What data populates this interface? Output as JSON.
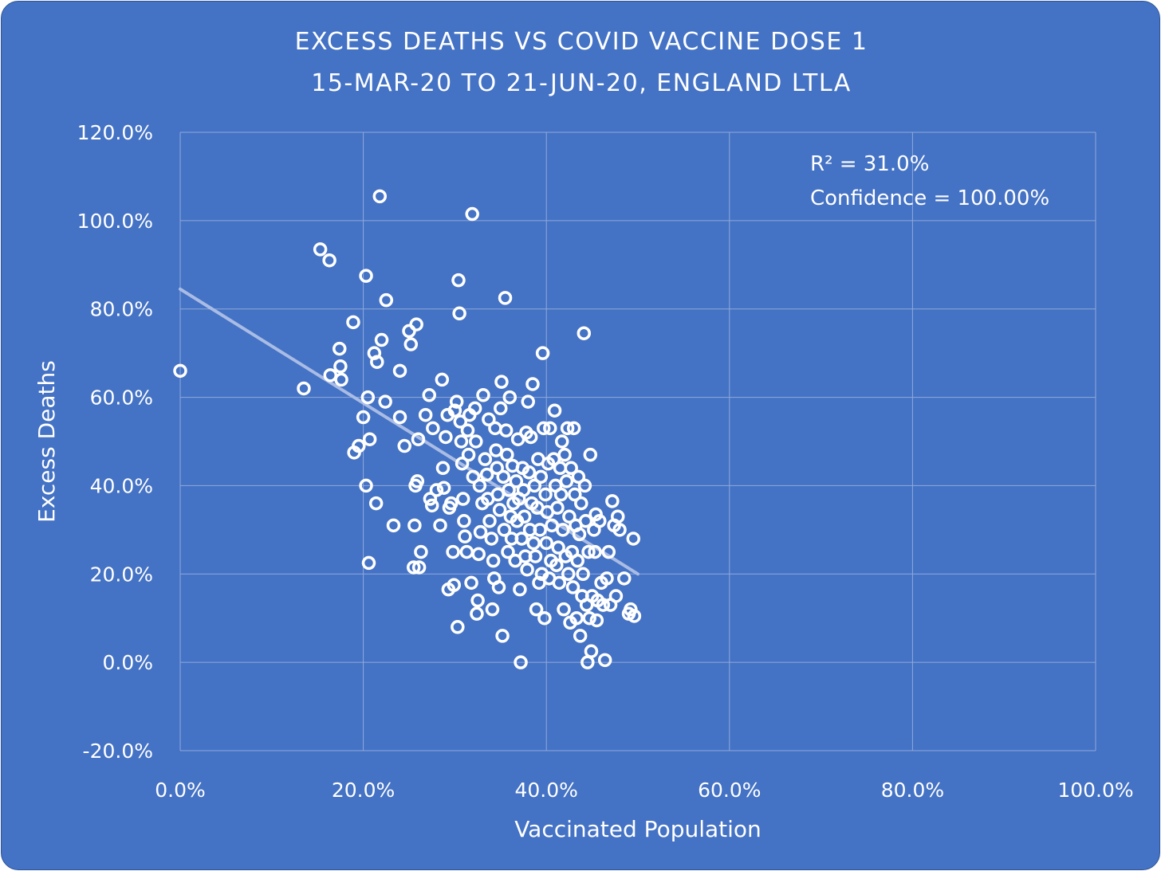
{
  "chart_data": {
    "type": "scatter",
    "title_lines": [
      "EXCESS DEATHS VS COVID VACCINE DOSE 1",
      "15-MAR-20 TO 21-JUN-20, ENGLAND LTLA"
    ],
    "xlabel": "Vaccinated Population",
    "ylabel": "Excess Deaths",
    "xlim": [
      0,
      1.0
    ],
    "ylim": [
      -0.2,
      1.2
    ],
    "x_ticks": [
      "0.0%",
      "20.0%",
      "40.0%",
      "60.0%",
      "80.0%",
      "100.0%"
    ],
    "y_ticks": [
      "120.0%",
      "100.0%",
      "80.0%",
      "60.0%",
      "40.0%",
      "20.0%",
      "0.0%",
      "-20.0%"
    ],
    "grid": true,
    "annotations": [
      "R² = 31.0%",
      "Confidence = 100.00%"
    ],
    "trendline": {
      "x": [
        0.0,
        0.5
      ],
      "y": [
        0.845,
        0.2
      ]
    },
    "colors": {
      "background": "#4472c4",
      "marker": "#ffffff",
      "trendline": "#a9bce5",
      "grid": "#8faadc"
    },
    "points": [
      [
        0.0,
        0.66
      ],
      [
        0.135,
        0.62
      ],
      [
        0.153,
        0.935
      ],
      [
        0.163,
        0.91
      ],
      [
        0.164,
        0.65
      ],
      [
        0.174,
        0.71
      ],
      [
        0.175,
        0.67
      ],
      [
        0.176,
        0.64
      ],
      [
        0.189,
        0.77
      ],
      [
        0.19,
        0.475
      ],
      [
        0.195,
        0.49
      ],
      [
        0.2,
        0.555
      ],
      [
        0.203,
        0.875
      ],
      [
        0.203,
        0.4
      ],
      [
        0.205,
        0.6
      ],
      [
        0.206,
        0.225
      ],
      [
        0.207,
        0.505
      ],
      [
        0.212,
        0.7
      ],
      [
        0.214,
        0.36
      ],
      [
        0.215,
        0.68
      ],
      [
        0.218,
        1.055
      ],
      [
        0.22,
        0.73
      ],
      [
        0.224,
        0.59
      ],
      [
        0.225,
        0.82
      ],
      [
        0.233,
        0.31
      ],
      [
        0.24,
        0.66
      ],
      [
        0.24,
        0.555
      ],
      [
        0.245,
        0.49
      ],
      [
        0.25,
        0.75
      ],
      [
        0.252,
        0.72
      ],
      [
        0.255,
        0.215
      ],
      [
        0.256,
        0.31
      ],
      [
        0.257,
        0.4
      ],
      [
        0.258,
        0.765
      ],
      [
        0.259,
        0.41
      ],
      [
        0.26,
        0.505
      ],
      [
        0.261,
        0.215
      ],
      [
        0.263,
        0.25
      ],
      [
        0.268,
        0.56
      ],
      [
        0.272,
        0.605
      ],
      [
        0.273,
        0.37
      ],
      [
        0.275,
        0.355
      ],
      [
        0.276,
        0.53
      ],
      [
        0.28,
        0.39
      ],
      [
        0.284,
        0.31
      ],
      [
        0.286,
        0.64
      ],
      [
        0.287,
        0.44
      ],
      [
        0.288,
        0.395
      ],
      [
        0.29,
        0.51
      ],
      [
        0.292,
        0.56
      ],
      [
        0.293,
        0.165
      ],
      [
        0.294,
        0.35
      ],
      [
        0.296,
        0.36
      ],
      [
        0.298,
        0.25
      ],
      [
        0.299,
        0.175
      ],
      [
        0.3,
        0.57
      ],
      [
        0.302,
        0.59
      ],
      [
        0.303,
        0.08
      ],
      [
        0.304,
        0.865
      ],
      [
        0.305,
        0.79
      ],
      [
        0.306,
        0.545
      ],
      [
        0.307,
        0.5
      ],
      [
        0.308,
        0.45
      ],
      [
        0.309,
        0.37
      ],
      [
        0.31,
        0.32
      ],
      [
        0.311,
        0.285
      ],
      [
        0.313,
        0.25
      ],
      [
        0.314,
        0.525
      ],
      [
        0.315,
        0.47
      ],
      [
        0.316,
        0.56
      ],
      [
        0.318,
        0.18
      ],
      [
        0.319,
        1.015
      ],
      [
        0.32,
        0.42
      ],
      [
        0.322,
        0.575
      ],
      [
        0.323,
        0.5
      ],
      [
        0.324,
        0.11
      ],
      [
        0.325,
        0.14
      ],
      [
        0.326,
        0.245
      ],
      [
        0.327,
        0.4
      ],
      [
        0.328,
        0.295
      ],
      [
        0.33,
        0.36
      ],
      [
        0.331,
        0.605
      ],
      [
        0.333,
        0.46
      ],
      [
        0.335,
        0.425
      ],
      [
        0.336,
        0.37
      ],
      [
        0.337,
        0.55
      ],
      [
        0.338,
        0.32
      ],
      [
        0.34,
        0.28
      ],
      [
        0.341,
        0.12
      ],
      [
        0.342,
        0.23
      ],
      [
        0.343,
        0.19
      ],
      [
        0.344,
        0.53
      ],
      [
        0.345,
        0.48
      ],
      [
        0.346,
        0.44
      ],
      [
        0.347,
        0.38
      ],
      [
        0.348,
        0.17
      ],
      [
        0.349,
        0.345
      ],
      [
        0.35,
        0.575
      ],
      [
        0.351,
        0.635
      ],
      [
        0.352,
        0.06
      ],
      [
        0.353,
        0.42
      ],
      [
        0.354,
        0.3
      ],
      [
        0.355,
        0.825
      ],
      [
        0.356,
        0.525
      ],
      [
        0.357,
        0.47
      ],
      [
        0.358,
        0.25
      ],
      [
        0.359,
        0.39
      ],
      [
        0.36,
        0.6
      ],
      [
        0.361,
        0.33
      ],
      [
        0.362,
        0.28
      ],
      [
        0.363,
        0.445
      ],
      [
        0.364,
        0.36
      ],
      [
        0.366,
        0.23
      ],
      [
        0.367,
        0.41
      ],
      [
        0.368,
        0.32
      ],
      [
        0.369,
        0.505
      ],
      [
        0.37,
        0.37
      ],
      [
        0.371,
        0.165
      ],
      [
        0.372,
        0.0
      ],
      [
        0.373,
        0.28
      ],
      [
        0.374,
        0.44
      ],
      [
        0.375,
        0.39
      ],
      [
        0.376,
        0.33
      ],
      [
        0.377,
        0.24
      ],
      [
        0.378,
        0.52
      ],
      [
        0.379,
        0.21
      ],
      [
        0.38,
        0.59
      ],
      [
        0.381,
        0.43
      ],
      [
        0.382,
        0.3
      ],
      [
        0.383,
        0.51
      ],
      [
        0.384,
        0.36
      ],
      [
        0.385,
        0.63
      ],
      [
        0.386,
        0.27
      ],
      [
        0.387,
        0.4
      ],
      [
        0.388,
        0.24
      ],
      [
        0.389,
        0.12
      ],
      [
        0.39,
        0.35
      ],
      [
        0.391,
        0.46
      ],
      [
        0.392,
        0.18
      ],
      [
        0.393,
        0.3
      ],
      [
        0.394,
        0.42
      ],
      [
        0.395,
        0.2
      ],
      [
        0.396,
        0.7
      ],
      [
        0.397,
        0.53
      ],
      [
        0.398,
        0.1
      ],
      [
        0.399,
        0.38
      ],
      [
        0.4,
        0.27
      ],
      [
        0.401,
        0.34
      ],
      [
        0.402,
        0.45
      ],
      [
        0.403,
        0.19
      ],
      [
        0.404,
        0.53
      ],
      [
        0.405,
        0.23
      ],
      [
        0.406,
        0.31
      ],
      [
        0.408,
        0.46
      ],
      [
        0.409,
        0.57
      ],
      [
        0.41,
        0.4
      ],
      [
        0.411,
        0.22
      ],
      [
        0.412,
        0.35
      ],
      [
        0.413,
        0.26
      ],
      [
        0.414,
        0.18
      ],
      [
        0.415,
        0.44
      ],
      [
        0.416,
        0.38
      ],
      [
        0.417,
        0.5
      ],
      [
        0.418,
        0.3
      ],
      [
        0.419,
        0.12
      ],
      [
        0.42,
        0.47
      ],
      [
        0.421,
        0.24
      ],
      [
        0.422,
        0.41
      ],
      [
        0.423,
        0.53
      ],
      [
        0.424,
        0.2
      ],
      [
        0.425,
        0.33
      ],
      [
        0.426,
        0.09
      ],
      [
        0.427,
        0.44
      ],
      [
        0.428,
        0.25
      ],
      [
        0.429,
        0.17
      ],
      [
        0.43,
        0.53
      ],
      [
        0.431,
        0.38
      ],
      [
        0.432,
        0.31
      ],
      [
        0.433,
        0.1
      ],
      [
        0.434,
        0.23
      ],
      [
        0.435,
        0.42
      ],
      [
        0.436,
        0.29
      ],
      [
        0.437,
        0.06
      ],
      [
        0.438,
        0.36
      ],
      [
        0.439,
        0.15
      ],
      [
        0.44,
        0.2
      ],
      [
        0.441,
        0.745
      ],
      [
        0.442,
        0.4
      ],
      [
        0.443,
        0.32
      ],
      [
        0.444,
        0.13
      ],
      [
        0.445,
        0.0
      ],
      [
        0.446,
        0.25
      ],
      [
        0.447,
        0.1
      ],
      [
        0.448,
        0.47
      ],
      [
        0.449,
        0.025
      ],
      [
        0.45,
        0.15
      ],
      [
        0.452,
        0.3
      ],
      [
        0.453,
        0.25
      ],
      [
        0.454,
        0.335
      ],
      [
        0.455,
        0.095
      ],
      [
        0.456,
        0.14
      ],
      [
        0.458,
        0.32
      ],
      [
        0.46,
        0.18
      ],
      [
        0.462,
        0.13
      ],
      [
        0.464,
        0.005
      ],
      [
        0.466,
        0.19
      ],
      [
        0.468,
        0.25
      ],
      [
        0.47,
        0.13
      ],
      [
        0.472,
        0.365
      ],
      [
        0.474,
        0.31
      ],
      [
        0.476,
        0.15
      ],
      [
        0.478,
        0.33
      ],
      [
        0.48,
        0.3
      ],
      [
        0.485,
        0.19
      ],
      [
        0.49,
        0.11
      ],
      [
        0.492,
        0.12
      ],
      [
        0.495,
        0.28
      ],
      [
        0.496,
        0.105
      ]
    ]
  }
}
